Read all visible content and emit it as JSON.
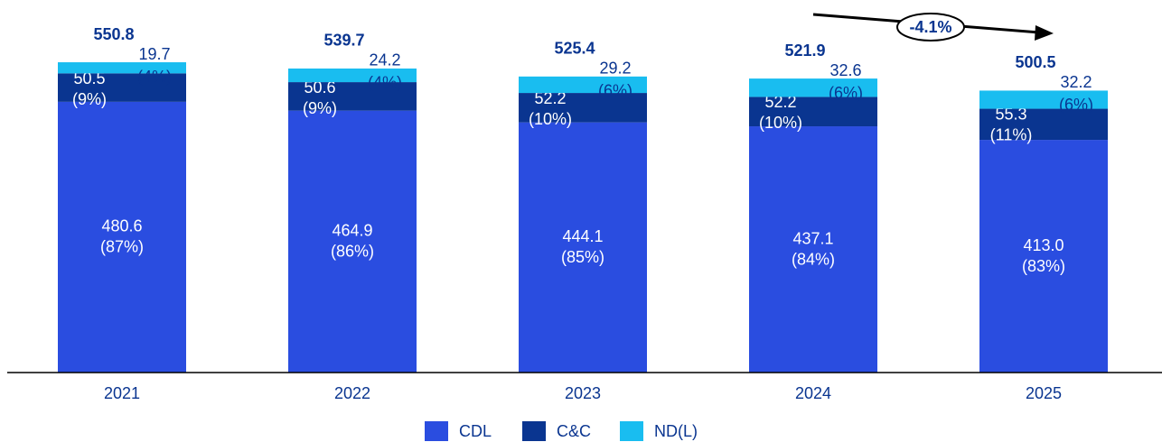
{
  "chart_data": {
    "type": "bar",
    "stacked": true,
    "categories": [
      "2021",
      "2022",
      "2023",
      "2024",
      "2025"
    ],
    "series": [
      {
        "name": "CDL",
        "color": "#2a4de0",
        "values": [
          480.6,
          464.9,
          444.1,
          437.1,
          413.0
        ],
        "value_labels": [
          "480.6",
          "464.9",
          "444.1",
          "437.1",
          "413.0"
        ],
        "share_labels": [
          "(87%)",
          "(86%)",
          "(85%)",
          "(84%)",
          "(83%)"
        ]
      },
      {
        "name": "C&C",
        "color": "#0a3590",
        "values": [
          50.5,
          50.6,
          52.2,
          52.2,
          55.3
        ],
        "share_labels": [
          "(9%)",
          "(9%)",
          "(10%)",
          "(10%)",
          "(11%)"
        ]
      },
      {
        "name": "ND(L)",
        "color": "#19bdf0",
        "values": [
          19.7,
          24.2,
          29.2,
          32.6,
          32.2
        ],
        "share_labels": [
          "(4%)",
          "(4%)",
          "(6%)",
          "(6%)",
          "(6%)"
        ]
      }
    ],
    "totals": [
      550.8,
      539.7,
      525.4,
      521.9,
      500.5
    ],
    "annotation": "-4.1%",
    "ylim": [
      0,
      600
    ]
  }
}
